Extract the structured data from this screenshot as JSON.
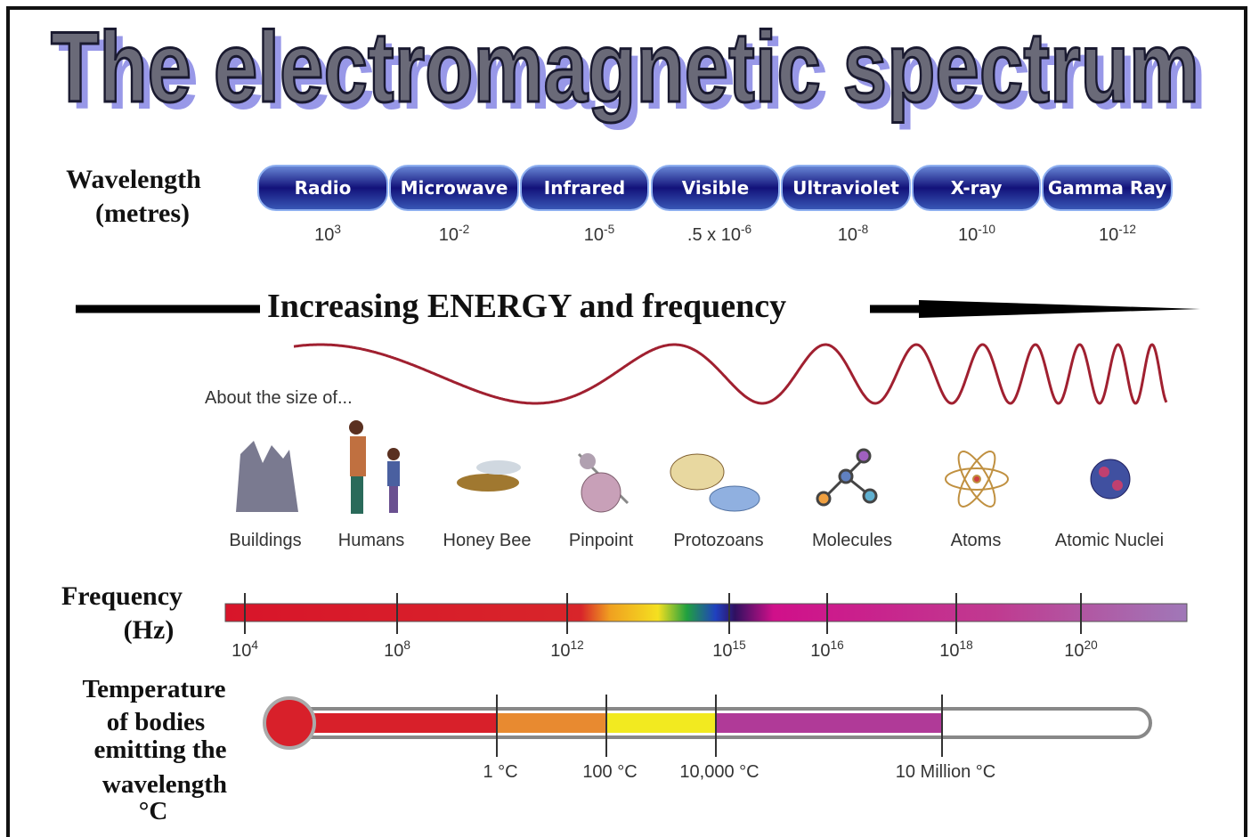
{
  "title": "The electromagnetic spectrum",
  "wavelength": {
    "label": [
      "Wavelength",
      "(metres)"
    ],
    "bands": [
      {
        "name": "Radio",
        "wavelength": {
          "base": "10",
          "exp": "3"
        }
      },
      {
        "name": "Microwave",
        "wavelength": {
          "base": "10",
          "exp": "-2"
        }
      },
      {
        "name": "Infrared",
        "wavelength": {
          "base": "10",
          "exp": "-5"
        }
      },
      {
        "name": "Visible",
        "wavelength": {
          "base": ".5 x 10",
          "exp": "-6"
        }
      },
      {
        "name": "Ultraviolet",
        "wavelength": {
          "base": "10",
          "exp": "-8"
        }
      },
      {
        "name": "X-ray",
        "wavelength": {
          "base": "10",
          "exp": "-10"
        }
      },
      {
        "name": "Gamma Ray",
        "wavelength": {
          "base": "10",
          "exp": "-12"
        }
      }
    ]
  },
  "energy_arrow": "Increasing ENERGY and frequency",
  "size": {
    "label": "About the size of...",
    "objects": [
      "Buildings",
      "Humans",
      "Honey Bee",
      "Pinpoint",
      "Protozoans",
      "Molecules",
      "Atoms",
      "Atomic Nuclei"
    ]
  },
  "frequency": {
    "label": [
      "Frequency",
      "(Hz)"
    ],
    "ticks": [
      {
        "base": "10",
        "exp": "4"
      },
      {
        "base": "10",
        "exp": "8"
      },
      {
        "base": "10",
        "exp": "12"
      },
      {
        "base": "10",
        "exp": "15"
      },
      {
        "base": "10",
        "exp": "16"
      },
      {
        "base": "10",
        "exp": "18"
      },
      {
        "base": "10",
        "exp": "20"
      }
    ]
  },
  "temperature": {
    "label": [
      "Temperature",
      "of bodies",
      "emitting the",
      "wavelength",
      "°C"
    ],
    "ticks": [
      "1 °C",
      "100 °C",
      "10,000 °C",
      "10 Million °C"
    ]
  }
}
